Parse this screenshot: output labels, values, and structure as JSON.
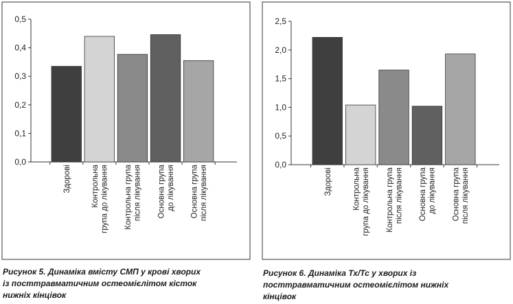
{
  "chart_data": [
    {
      "type": "bar",
      "ylim": [
        0,
        0.5
      ],
      "yticks": [
        "0,0",
        "0,1",
        "0,2",
        "0,3",
        "0,4",
        "0,5"
      ],
      "categories": [
        [
          "Здорові"
        ],
        [
          "Контрольна",
          "група до лікування"
        ],
        [
          "Контрольна група",
          "після лікування"
        ],
        [
          "Основна група",
          "до лікування"
        ],
        [
          "Основна група",
          "після лікування"
        ]
      ],
      "values": [
        0.335,
        0.44,
        0.377,
        0.446,
        0.355
      ],
      "colors": [
        "#3f3f3f",
        "#d4d4d4",
        "#8a8a8a",
        "#606060",
        "#a6a6a6"
      ],
      "grid": false,
      "caption": "Рисунок 5. Динаміка вмісту СМП у крові хворих\nіз посттравматичним остеомієлітом кісток\nнижніх кінцівок"
    },
    {
      "type": "bar",
      "ylim": [
        0,
        2.5
      ],
      "yticks": [
        "0,0",
        "0,5",
        "1,0",
        "1,5",
        "2,0",
        "2,5"
      ],
      "categories": [
        [
          "Здорові"
        ],
        [
          "Контрольна",
          "група до лікування"
        ],
        [
          "Контрольна група",
          "після лікування"
        ],
        [
          "Основна група",
          "до лікування"
        ],
        [
          "Основна група",
          "після лікування"
        ]
      ],
      "values": [
        2.22,
        1.04,
        1.65,
        1.02,
        1.93
      ],
      "colors": [
        "#3f3f3f",
        "#d4d4d4",
        "#8a8a8a",
        "#606060",
        "#a6a6a6"
      ],
      "grid": false,
      "caption": "Рисунок 6. Динаміка Тх/Тс у хворих із\nпосттравматичним остеомієлітом нижніх\nкінцівок"
    }
  ]
}
